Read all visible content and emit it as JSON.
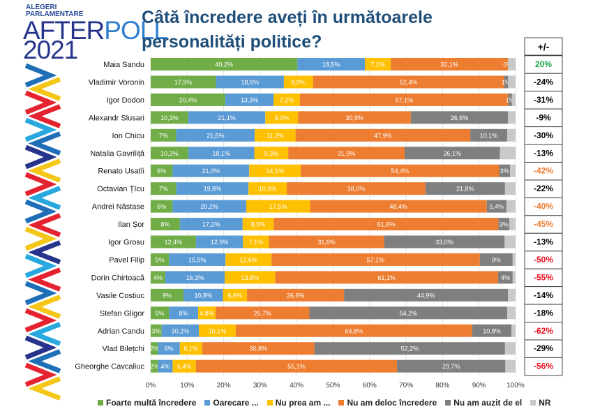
{
  "logo": {
    "line1": "ALEGERI",
    "line2": "PARLAMENTARE",
    "word_a": "AFTER",
    "word_b": "POLL",
    "year": "2021"
  },
  "title": "Câtă încredere aveți în următoarele personalități politice?",
  "delta_header": "+/-",
  "chart_data": {
    "type": "bar",
    "orientation": "horizontal-stacked-100",
    "title": "Câtă încredere aveți în următoarele personalități politice?",
    "xlim": [
      0,
      100
    ],
    "x_ticks": [
      "0%",
      "10%",
      "20%",
      "30%",
      "40%",
      "50%",
      "60%",
      "70%",
      "80%",
      "90%",
      "100%"
    ],
    "grid": true,
    "legend_position": "bottom",
    "series": [
      {
        "name": "Foarte multă încredere",
        "color": "#70ad47"
      },
      {
        "name": "Oarecare ...",
        "color": "#5b9bd5"
      },
      {
        "name": "Nu prea am ...",
        "color": "#ffc000"
      },
      {
        "name": "Nu am deloc încredere",
        "color": "#ed7d31"
      },
      {
        "name": "Nu am auzit de el",
        "color": "#7f7f7f"
      },
      {
        "name": "NR",
        "color": "#c9c9c9"
      }
    ],
    "rows": [
      {
        "name": "Maia Sandu",
        "values": [
          40.2,
          18.5,
          7.1,
          32.1,
          0
        ],
        "labels": [
          "40,2%",
          "18,5%",
          "7,1%",
          "32,1%",
          "0%"
        ],
        "delta": "20%",
        "delta_color": "#1aa34a"
      },
      {
        "name": "Vladimir Voronin",
        "values": [
          17.9,
          18.6,
          8.0,
          52.4,
          1
        ],
        "labels": [
          "17,9%",
          "18,6%",
          "8,0%",
          "52,4%",
          "1%"
        ],
        "delta": "-24%",
        "delta_color": "#000000"
      },
      {
        "name": "Igor Dodon",
        "values": [
          20.4,
          13.3,
          7.2,
          57.1,
          1
        ],
        "labels": [
          "20,4%",
          "13,3%",
          "7,2%",
          "57,1%",
          "1%"
        ],
        "delta": "-31%",
        "delta_color": "#000000"
      },
      {
        "name": "Alexandr Slusari",
        "values": [
          10.3,
          21.1,
          9.0,
          30.9,
          26.6
        ],
        "labels": [
          "10,3%",
          "21,1%",
          "9,0%",
          "30,9%",
          "26,6%"
        ],
        "delta": "-9%",
        "delta_color": "#000000"
      },
      {
        "name": "Ion Chicu",
        "values": [
          7,
          21.5,
          11.2,
          47.9,
          10.1
        ],
        "labels": [
          "7%",
          "21,5%",
          "11,2%",
          "47,9%",
          "10,1%"
        ],
        "delta": "-30%",
        "delta_color": "#000000"
      },
      {
        "name": "Natalia Gavriliță",
        "values": [
          10.3,
          18.1,
          9.3,
          31.9,
          26.1
        ],
        "labels": [
          "10,3%",
          "18,1%",
          "9,3%",
          "31,9%",
          "26,1%"
        ],
        "delta": "-13%",
        "delta_color": "#000000"
      },
      {
        "name": "Renato Usatîi",
        "values": [
          6,
          21.0,
          14.1,
          54.4,
          3
        ],
        "labels": [
          "6%",
          "21,0%",
          "14,1%",
          "54,4%",
          "3%"
        ],
        "delta": "-42%",
        "delta_color": "#ed7d31"
      },
      {
        "name": "Octavian Țîcu",
        "values": [
          7,
          19.8,
          10.5,
          38.0,
          21.8
        ],
        "labels": [
          "7%",
          "19,8%",
          "10,5%",
          "38,0%",
          "21,8%"
        ],
        "delta": "-22%",
        "delta_color": "#000000"
      },
      {
        "name": "Andrei Năstase",
        "values": [
          6,
          20.2,
          17.5,
          48.4,
          5.4
        ],
        "labels": [
          "6%",
          "20,2%",
          "17,5%",
          "48,4%",
          "5,4%"
        ],
        "delta": "-40%",
        "delta_color": "#ed7d31"
      },
      {
        "name": "Ilan Șor",
        "values": [
          8,
          17.2,
          8.5,
          61.6,
          3
        ],
        "labels": [
          "8%",
          "17,2%",
          "8,5%",
          "61,6%",
          "3%"
        ],
        "delta": "-45%",
        "delta_color": "#ed7d31"
      },
      {
        "name": "Igor Grosu",
        "values": [
          12.4,
          12.9,
          7.1,
          31.6,
          33.0
        ],
        "labels": [
          "12,4%",
          "12,9%",
          "7,1%",
          "31,6%",
          "33,0%"
        ],
        "delta": "-13%",
        "delta_color": "#000000"
      },
      {
        "name": "Pavel Filip",
        "values": [
          5,
          15.5,
          12.6,
          57.1,
          9
        ],
        "labels": [
          "5%",
          "15,5%",
          "12,6%",
          "57,1%",
          "9%"
        ],
        "delta": "-50%",
        "delta_color": "#e8101e"
      },
      {
        "name": "Dorin Chirtoacă",
        "values": [
          4,
          16.3,
          13.8,
          61.1,
          4
        ],
        "labels": [
          "4%",
          "16,3%",
          "13,8%",
          "61,1%",
          "4%"
        ],
        "delta": "-55%",
        "delta_color": "#e8101e"
      },
      {
        "name": "Vasile Costiuc",
        "values": [
          9,
          10.8,
          6.6,
          26.6,
          44.9
        ],
        "labels": [
          "9%",
          "10,8%",
          "6,6%",
          "26,6%",
          "44,9%"
        ],
        "delta": "-14%",
        "delta_color": "#000000"
      },
      {
        "name": "Stefan Gligor",
        "values": [
          5,
          8,
          4.8,
          25.7,
          54.2
        ],
        "labels": [
          "5%",
          "8%",
          "4,8%",
          "25,7%",
          "54,2%"
        ],
        "delta": "-18%",
        "delta_color": "#000000"
      },
      {
        "name": "Adrian Candu",
        "values": [
          3,
          10.2,
          10.1,
          64.8,
          10.8
        ],
        "labels": [
          "3%",
          "10,2%",
          "10,1%",
          "64,8%",
          "10,8%"
        ],
        "delta": "-62%",
        "delta_color": "#e8101e"
      },
      {
        "name": "Vlad Bilețchi",
        "values": [
          2,
          6,
          6.1,
          30.8,
          52.2
        ],
        "labels": [
          "2%",
          "6%",
          "6,1%",
          "30,8%",
          "52,2%"
        ],
        "delta": "-29%",
        "delta_color": "#000000"
      },
      {
        "name": "Gheorghe Cavcaliuc",
        "values": [
          2,
          4,
          6.4,
          55.1,
          29.7
        ],
        "labels": [
          "2%",
          "4%",
          "6,4%",
          "55,1%",
          "29,7%"
        ],
        "delta": "-56%",
        "delta_color": "#e8101e"
      }
    ]
  }
}
